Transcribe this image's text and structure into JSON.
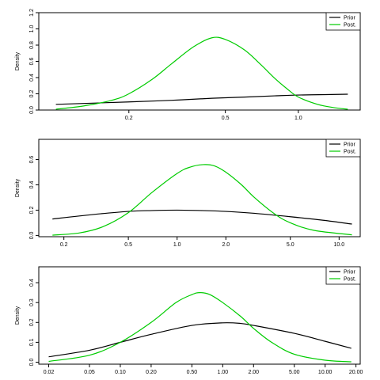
{
  "chart_data": [
    {
      "type": "line",
      "title": "",
      "xlabel": "",
      "ylabel": "Density",
      "x_scale": "log",
      "xlim": [
        0.085,
        1.8
      ],
      "ylim": [
        0,
        1.2
      ],
      "x_ticks": [
        0.2,
        0.5,
        1.0
      ],
      "x_tick_labels": [
        "0.2",
        "0.5",
        "1.0"
      ],
      "y_ticks": [
        0,
        0.2,
        0.4,
        0.6,
        0.8,
        1.0,
        1.2
      ],
      "y_tick_labels": [
        "0.0",
        "0.2",
        "0.4",
        "0.6",
        "0.8",
        "1.0",
        "1.2"
      ],
      "legend_position": "top-right",
      "series": [
        {
          "name": "Prior",
          "color": "#000000",
          "x": [
            0.1,
            0.2,
            0.3,
            0.44,
            0.6,
            0.8,
            1.0,
            1.3,
            1.6
          ],
          "y": [
            0.07,
            0.1,
            0.12,
            0.145,
            0.16,
            0.175,
            0.185,
            0.19,
            0.195
          ]
        },
        {
          "name": "Post.",
          "color": "#00cc00",
          "x": [
            0.1,
            0.13,
            0.17,
            0.2,
            0.25,
            0.3,
            0.37,
            0.44,
            0.5,
            0.6,
            0.7,
            0.8,
            0.9,
            1.0,
            1.2,
            1.4,
            1.6
          ],
          "y": [
            0.01,
            0.05,
            0.12,
            0.2,
            0.38,
            0.57,
            0.78,
            0.89,
            0.87,
            0.74,
            0.56,
            0.39,
            0.26,
            0.16,
            0.07,
            0.03,
            0.01
          ]
        }
      ]
    },
    {
      "type": "line",
      "title": "",
      "xlabel": "",
      "ylabel": "Density",
      "x_scale": "log",
      "xlim": [
        0.14,
        13.5
      ],
      "ylim": [
        -0.01,
        0.76
      ],
      "x_ticks": [
        0.2,
        0.5,
        1.0,
        2.0,
        5.0,
        10.0
      ],
      "x_tick_labels": [
        "0.2",
        "0.5",
        "1.0",
        "2.0",
        "5.0",
        "10.0"
      ],
      "y_ticks": [
        0,
        0.2,
        0.4,
        0.6
      ],
      "y_tick_labels": [
        "0.0",
        "0.2",
        "0.4",
        "0.6"
      ],
      "legend_position": "top-right",
      "series": [
        {
          "name": "Prior",
          "color": "#000000",
          "x": [
            0.17,
            0.3,
            0.5,
            0.7,
            1.0,
            1.4,
            2.0,
            3.0,
            5.0,
            8.0,
            12.0
          ],
          "y": [
            0.13,
            0.165,
            0.19,
            0.197,
            0.2,
            0.197,
            0.19,
            0.175,
            0.148,
            0.12,
            0.09
          ]
        },
        {
          "name": "Post.",
          "color": "#00cc00",
          "x": [
            0.17,
            0.25,
            0.35,
            0.5,
            0.7,
            1.0,
            1.2,
            1.45,
            1.7,
            2.0,
            2.5,
            3.0,
            4.0,
            5.0,
            7.0,
            12.0
          ],
          "y": [
            0.002,
            0.02,
            0.07,
            0.18,
            0.34,
            0.49,
            0.54,
            0.56,
            0.55,
            0.5,
            0.4,
            0.3,
            0.17,
            0.1,
            0.04,
            0.005
          ]
        }
      ]
    },
    {
      "type": "line",
      "title": "",
      "xlabel": "",
      "ylabel": "Density",
      "x_scale": "log",
      "xlim": [
        0.016,
        22.0
      ],
      "ylim": [
        -0.01,
        0.48
      ],
      "x_ticks": [
        0.02,
        0.05,
        0.1,
        0.2,
        0.5,
        1.0,
        2.0,
        5.0,
        10.0,
        20.0
      ],
      "x_tick_labels": [
        "0.02",
        "0.05",
        "0.10",
        "0.20",
        "0.50",
        "1.00",
        "2.00",
        "5.00",
        "10.00",
        "20.00"
      ],
      "y_ticks": [
        0,
        0.1,
        0.2,
        0.3,
        0.4
      ],
      "y_tick_labels": [
        "0.0",
        "0.1",
        "0.2",
        "0.3",
        "0.4"
      ],
      "legend_position": "top-right",
      "series": [
        {
          "name": "Prior",
          "color": "#000000",
          "x": [
            0.02,
            0.05,
            0.1,
            0.2,
            0.5,
            1.0,
            1.5,
            2.0,
            5.0,
            10.0,
            18.0
          ],
          "y": [
            0.027,
            0.06,
            0.1,
            0.14,
            0.185,
            0.198,
            0.195,
            0.185,
            0.145,
            0.105,
            0.07
          ]
        },
        {
          "name": "Post.",
          "color": "#00cc00",
          "x": [
            0.02,
            0.05,
            0.1,
            0.2,
            0.35,
            0.5,
            0.6,
            0.75,
            1.0,
            1.5,
            2.0,
            3.0,
            5.0,
            10.0,
            18.0
          ],
          "y": [
            0.004,
            0.035,
            0.1,
            0.2,
            0.3,
            0.34,
            0.35,
            0.34,
            0.3,
            0.23,
            0.17,
            0.1,
            0.04,
            0.01,
            0.002
          ]
        }
      ]
    }
  ]
}
